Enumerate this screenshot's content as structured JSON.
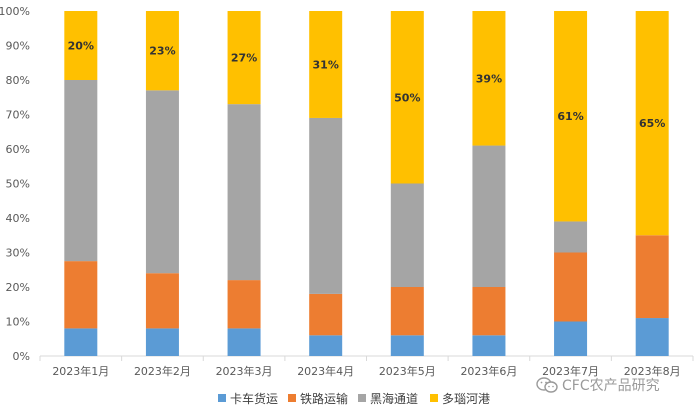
{
  "chart_data": {
    "type": "bar",
    "stacked": true,
    "percent": true,
    "categories": [
      "2023年1月",
      "2023年2月",
      "2023年3月",
      "2023年4月",
      "2023年5月",
      "2023年6月",
      "2023年7月",
      "2023年8月"
    ],
    "series": [
      {
        "name": "卡车货运",
        "color": "#5b9bd5",
        "values": [
          8,
          8,
          8,
          6,
          6,
          6,
          10,
          11
        ]
      },
      {
        "name": "铁路运输",
        "color": "#ed7d31",
        "values": [
          19.5,
          16,
          14,
          12,
          14,
          14,
          20,
          24
        ]
      },
      {
        "name": "黑海通道",
        "color": "#a5a5a5",
        "values": [
          52.5,
          53,
          51,
          51,
          30,
          41,
          9,
          0
        ]
      },
      {
        "name": "多瑙河港",
        "color": "#ffc000",
        "values": [
          20,
          23,
          27,
          31,
          50,
          39,
          61,
          65
        ]
      }
    ],
    "data_labels": [
      "20%",
      "23%",
      "27%",
      "31%",
      "50%",
      "39%",
      "61%",
      "65%"
    ],
    "yticks": [
      "0%",
      "10%",
      "20%",
      "30%",
      "40%",
      "50%",
      "60%",
      "70%",
      "80%",
      "90%",
      "100%"
    ],
    "ylim": [
      0,
      100
    ],
    "grid": false,
    "legend_position": "bottom"
  },
  "watermark": {
    "text": "CFC农产品研究"
  }
}
